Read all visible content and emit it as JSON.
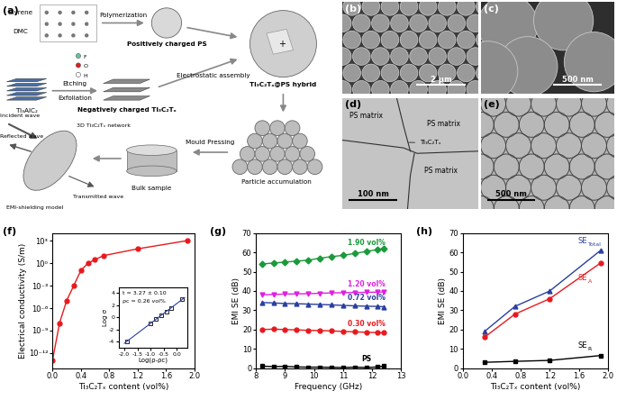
{
  "diagram": {
    "label": "(a)",
    "texts": {
      "styrene": "Styrene",
      "dmc": "DMC",
      "polymerization": "Polymerization",
      "ps": "Positively charged PS",
      "assembly": "Electrostatic assembly",
      "atoms": [
        "F",
        "O",
        "H"
      ],
      "etching": "Etching",
      "exfoliation": "Exfoliation",
      "max": "Ti₃AlC₂",
      "mxene": "Negatively charged Ti₃C₂Tₓ",
      "hybrid": "Ti₃C₂Tₓ@PS hybrid",
      "plus": "+",
      "network": "3D Ti₃C₂Tₓ network",
      "incident": "Incident wave",
      "reflected": "Reflected wave",
      "transmitted": "Transmitted wave",
      "model": "EMI-shielding model",
      "bulk": "Bulk sample",
      "pressing": "Mould Pressing",
      "accumulation": "Particle accumulation"
    }
  },
  "images": [
    {
      "label": "(b)",
      "scale_bar": "2 μm",
      "annotations": []
    },
    {
      "label": "(c)",
      "scale_bar": "500 nm",
      "annotations": []
    },
    {
      "label": "(d)",
      "scale_bar": "100 nm",
      "annotations": [
        "PS matrix",
        "PS matrix",
        "PS matrix",
        "Ti₃C₂Tₓ"
      ]
    },
    {
      "label": "(e)",
      "scale_bar": "500 nm",
      "annotations": []
    }
  ],
  "chart_data": [
    {
      "label": "(f)",
      "type": "line",
      "log": "y",
      "x_label": "Ti₃C₂Tₓ content (vol%)",
      "y_label": "Electrical conductivity (S/m)",
      "xlim": [
        0.0,
        2.0
      ],
      "xticks": [
        0.0,
        0.4,
        0.8,
        1.2,
        1.6,
        2.0
      ],
      "ylim": [
        1e-14,
        10000
      ],
      "yticks": [
        {
          "value": 1e-12,
          "label": "10⁻¹²"
        },
        {
          "value": 1e-09,
          "label": "10⁻⁹"
        },
        {
          "value": 1e-06,
          "label": "10⁻⁶"
        },
        {
          "value": 0.001,
          "label": "10⁻³"
        },
        {
          "value": 1,
          "label": "10⁰"
        },
        {
          "value": 1000,
          "label": "10³"
        }
      ],
      "series": [
        {
          "color": "#e8191e",
          "marker": "circle",
          "line_style": "solid",
          "x": [
            0.0,
            0.1,
            0.2,
            0.3,
            0.4,
            0.5,
            0.6,
            0.72,
            1.2,
            1.9
          ],
          "values": [
            1e-13,
            1e-08,
            1e-05,
            0.001,
            0.1,
            1,
            3,
            10,
            80,
            1000
          ]
        }
      ],
      "inset": {
        "type": "scatter",
        "x_label": "Log(ρ-ρc)",
        "y_label": "Log σ",
        "xlim": [
          -2.2,
          0.4
        ],
        "xticks": [
          -2.0,
          -1.5,
          -1.0,
          -0.5,
          0.0
        ],
        "ylim": [
          -5,
          5
        ],
        "yticks": [
          -4,
          -2,
          0,
          2,
          4
        ],
        "series": [
          {
            "color": "#000000",
            "marker": "square",
            "x": [
              -1.9,
              -1.0,
              -0.8,
              -0.6,
              -0.4,
              -0.2,
              0.2
            ],
            "values": [
              -3.9,
              -1.0,
              -0.3,
              0.4,
              1.0,
              1.6,
              3.0
            ]
          }
        ],
        "fit": {
          "color": "#2a3f9f",
          "x": [
            -2.0,
            0.3
          ],
          "values": [
            -4.24,
            3.28
          ]
        },
        "annotations": [
          "t = 3.27 ± 0.10",
          "ρc = 0.26 vol%"
        ]
      }
    },
    {
      "label": "(g)",
      "type": "line",
      "x_label": "Frequency (GHz)",
      "y_label": "EMI SE (dB)",
      "xlim": [
        8,
        13
      ],
      "xticks": [
        8,
        9,
        10,
        11,
        12,
        13
      ],
      "ylim": [
        0,
        70
      ],
      "yticks": [
        0,
        10,
        20,
        30,
        40,
        50,
        60,
        70
      ],
      "x": [
        8.2,
        8.6,
        9.0,
        9.4,
        9.8,
        10.2,
        10.6,
        11.0,
        11.4,
        11.8,
        12.2,
        12.4
      ],
      "series": [
        {
          "name": "PS",
          "color": "#000000",
          "marker": "square",
          "values": [
            1.0,
            0.8,
            0.9,
            0.6,
            0.5,
            0.5,
            0.4,
            0.3,
            0.5,
            0.3,
            0.6,
            1.0
          ]
        },
        {
          "name": "0.30 vol%",
          "color": "#e8191e",
          "marker": "circle",
          "values": [
            20.0,
            20.2,
            20.0,
            19.8,
            19.6,
            19.5,
            19.3,
            19.0,
            18.8,
            18.6,
            18.4,
            18.3
          ]
        },
        {
          "name": "0.72 vol%",
          "color": "#2a3f9f",
          "marker": "triangle",
          "values": [
            34.0,
            33.8,
            33.5,
            33.4,
            33.2,
            33.0,
            32.8,
            32.5,
            32.3,
            32.1,
            32.0,
            31.8
          ]
        },
        {
          "name": "1.20 vol%",
          "color": "#e020e0",
          "marker": "triangle_down",
          "values": [
            38.0,
            38.2,
            38.4,
            38.5,
            38.6,
            38.8,
            39.0,
            39.1,
            39.2,
            39.3,
            39.4,
            39.5
          ]
        },
        {
          "name": "1.90 vol%",
          "color": "#1a9a3a",
          "marker": "diamond",
          "values": [
            54.0,
            54.5,
            55.0,
            55.5,
            56.0,
            57.0,
            57.8,
            58.5,
            59.5,
            60.5,
            61.5,
            62.0
          ]
        }
      ]
    },
    {
      "label": "(h)",
      "type": "line",
      "x_label": "Ti₃C₂Tₓ content (vol%)",
      "y_label": "EMI SE (dB)",
      "xlim": [
        0.0,
        2.0
      ],
      "xticks": [
        0.0,
        0.4,
        0.8,
        1.2,
        1.6,
        2.0
      ],
      "ylim": [
        0,
        70
      ],
      "yticks": [
        0,
        10,
        20,
        30,
        40,
        50,
        60,
        70
      ],
      "x": [
        0.3,
        0.72,
        1.2,
        1.9
      ],
      "series": [
        {
          "name": {
            "main": "SE",
            "sub": "Total"
          },
          "color": "#2a3f9f",
          "marker": "triangle",
          "values": [
            19,
            32,
            40,
            61
          ]
        },
        {
          "name": {
            "main": "SE",
            "sub": "A"
          },
          "color": "#e8191e",
          "marker": "circle",
          "values": [
            16,
            28,
            36,
            54.5
          ]
        },
        {
          "name": {
            "main": "SE",
            "sub": "R"
          },
          "color": "#000000",
          "marker": "square",
          "values": [
            3,
            3.5,
            4,
            6.5
          ]
        }
      ]
    }
  ]
}
